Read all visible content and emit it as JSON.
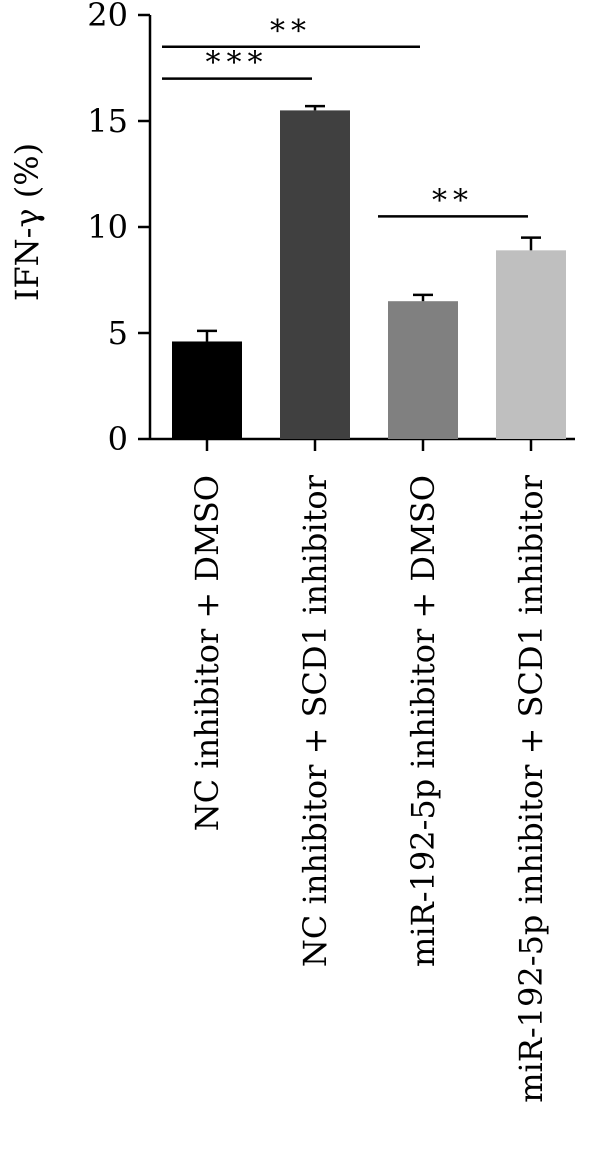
{
  "chart_data": {
    "type": "bar",
    "title": "",
    "xlabel": "",
    "ylabel": "IFN-γ (%)",
    "ylim": [
      0,
      20
    ],
    "yticks": [
      0,
      5,
      10,
      15,
      20
    ],
    "ytick_labels": [
      "0",
      "5",
      "10",
      "15",
      "20"
    ],
    "grid": false,
    "legend": "none",
    "categories": [
      "NC inhibitor + DMSO",
      "NC inhibitor + SCD1 inhibitor",
      "miR-192-5p inhibitor + DMSO",
      "miR-192-5p inhibitor + SCD1 inhibitor"
    ],
    "values": [
      4.6,
      15.5,
      6.5,
      8.9
    ],
    "errors": [
      0.5,
      0.2,
      0.3,
      0.6
    ],
    "colors": [
      "#000000",
      "#404040",
      "#808080",
      "#bfbfbf"
    ],
    "significance": [
      {
        "from": 0,
        "to": 2,
        "label": "**",
        "y": 18.5
      },
      {
        "from": 0,
        "to": 1,
        "label": "***",
        "y": 17.0
      },
      {
        "from": 2,
        "to": 3,
        "label": "**",
        "y": 10.5
      }
    ]
  }
}
